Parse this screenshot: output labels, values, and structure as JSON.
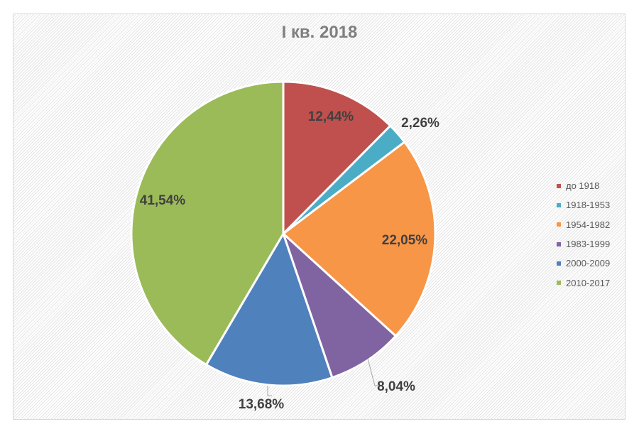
{
  "chart_data": {
    "type": "pie",
    "title": "I кв. 2018",
    "categories": [
      "до 1918",
      "1918-1953",
      "1954-1982",
      "1983-1999",
      "2000-2009",
      "2010-2017"
    ],
    "values": [
      12.44,
      2.26,
      22.05,
      8.04,
      13.68,
      41.54
    ],
    "data_labels": [
      "12,44%",
      "2,26%",
      "22,05%",
      "8,04%",
      "13,68%",
      "41,54%"
    ],
    "colors": [
      "#c0504d",
      "#4bacc6",
      "#f79646",
      "#8064a2",
      "#4f81bd",
      "#9bbb59"
    ],
    "legend_position": "right"
  }
}
